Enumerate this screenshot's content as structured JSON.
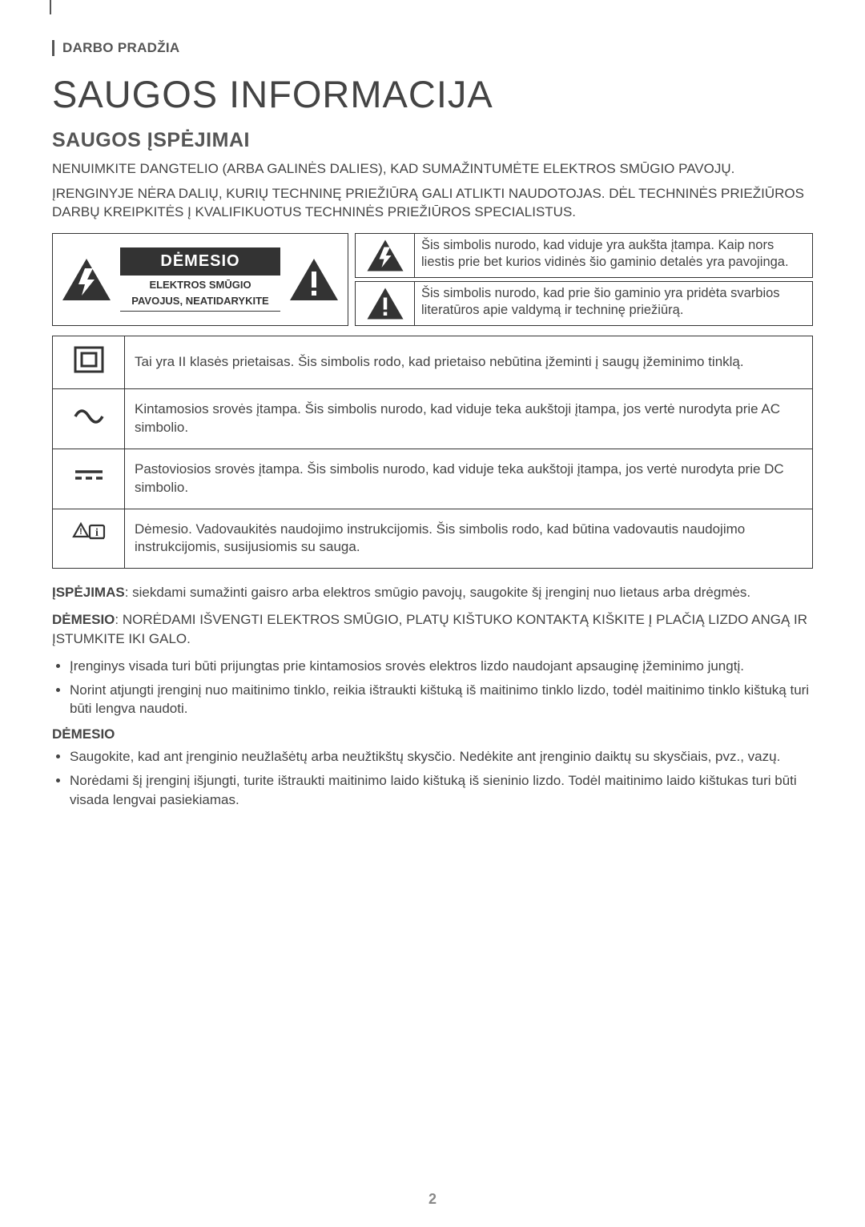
{
  "colors": {
    "text": "#444444",
    "heading": "#555555",
    "border": "#333333",
    "badge_bg": "#333333",
    "badge_fg": "#ffffff",
    "pagenum": "#888888"
  },
  "breadcrumb": "DARBO PRADŽIA",
  "page_title": "SAUGOS INFORMACIJA",
  "section_heading": "SAUGOS ĮSPĖJIMAI",
  "intro_p1": "NENUIMKITE DANGTELIO (ARBA GALINĖS DALIES), KAD SUMAŽINTUMĖTE ELEKTROS SMŪGIO PAVOJŲ.",
  "intro_p2": "ĮRENGINYJE NĖRA DALIŲ, KURIŲ TECHNINĘ PRIEŽIŪRĄ GALI ATLIKTI NAUDOTOJAS. DĖL TECHNINĖS PRIEŽIŪROS DARBŲ KREIPKITĖS Į KVALIFIKUOTUS TECHNINĖS PRIEŽIŪROS SPECIALISTUS.",
  "caution_box": {
    "badge": "DĖMESIO",
    "sub1": "ELEKTROS SMŪGIO",
    "sub2": "PAVOJUS, NEATIDARYKITE",
    "bolt_desc": "Šis simbolis nurodo, kad viduje yra aukšta įtampa. Kaip nors liestis prie bet kurios vidinės šio gaminio detalės yra pavojinga.",
    "excl_desc": "Šis simbolis nurodo, kad prie šio gaminio yra pridėta svarbios literatūros apie valdymą ir techninę priežiūrą."
  },
  "symbol_rows": [
    {
      "icon": "class2",
      "text": "Tai yra II klasės prietaisas. Šis simbolis rodo, kad prietaiso nebūtina įžeminti į saugų įžeminimo tinklą."
    },
    {
      "icon": "ac",
      "text": "Kintamosios srovės įtampa. Šis simbolis nurodo, kad viduje teka aukštoji įtampa, jos vertė nurodyta prie AC simbolio."
    },
    {
      "icon": "dc",
      "text": "Pastoviosios srovės įtampa. Šis simbolis nurodo, kad viduje teka aukštoji įtampa, jos vertė nurodyta prie DC simbolio."
    },
    {
      "icon": "manual",
      "text": "Dėmesio. Vadovaukitės naudojimo instrukcijomis. Šis simbolis rodo, kad būtina vadovautis naudojimo instrukcijomis, susijusiomis su sauga."
    }
  ],
  "warn": {
    "label": "ĮSPĖJIMAS",
    "text": ": siekdami sumažinti gaisro arba elektros smūgio pavojų, saugokite šį įrenginį nuo lietaus arba drėgmės."
  },
  "caution2": {
    "label": "DĖMESIO",
    "text": ": NORĖDAMI IŠVENGTI ELEKTROS SMŪGIO, PLATŲ KIŠTUKO KONTAKTĄ KIŠKITE Į PLAČIĄ LIZDO ANGĄ IR ĮSTUMKITE IKI GALO."
  },
  "bullets1": [
    "Įrenginys visada turi būti prijungtas prie kintamosios srovės elektros lizdo naudojant apsauginę įžeminimo jungtį.",
    "Norint atjungti įrenginį nuo maitinimo tinklo, reikia ištraukti kištuką iš maitinimo tinklo lizdo, todėl maitinimo tinklo kištuką turi būti lengva naudoti."
  ],
  "sub_heading": "DĖMESIO",
  "bullets2": [
    "Saugokite, kad ant įrenginio neužlašėtų arba neužtikštų skysčio. Nedėkite ant įrenginio daiktų su skysčiais, pvz., vazų.",
    "Norėdami šį įrenginį išjungti, turite ištraukti maitinimo laido kištuką iš sieninio lizdo. Todėl maitinimo laido kištukas turi būti visada lengvai pasiekiamas."
  ],
  "page_number": "2"
}
